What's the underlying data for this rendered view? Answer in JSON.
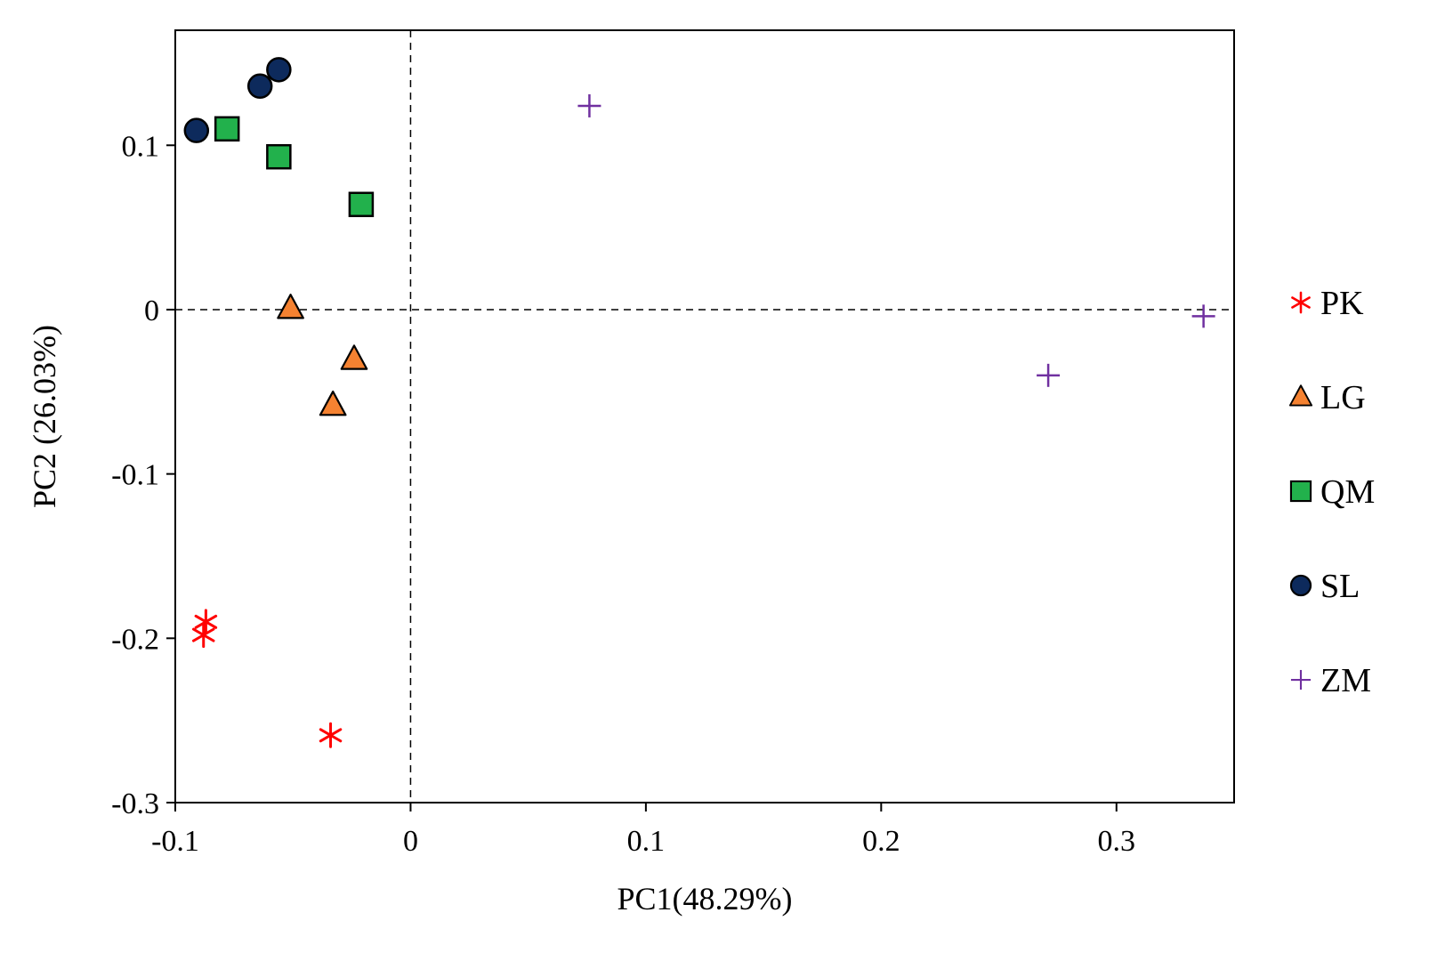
{
  "chart_data": {
    "type": "scatter",
    "title": "",
    "xlabel": "PC1(48.29%)",
    "ylabel": "PC2 (26.03%)",
    "xlim": [
      -0.1,
      0.35
    ],
    "ylim": [
      -0.3,
      0.17
    ],
    "x_ticks": [
      -0.1,
      0,
      0.1,
      0.2,
      0.3
    ],
    "x_tick_labels": [
      "-0.1",
      "0",
      "0.1",
      "0.2",
      "0.3"
    ],
    "y_ticks": [
      -0.3,
      -0.2,
      -0.1,
      0,
      0.1
    ],
    "y_tick_labels": [
      "-0.3",
      "-0.2",
      "-0.1",
      "0",
      "0.1"
    ],
    "reference_lines": {
      "x": 0,
      "y": 0,
      "style": "dashed"
    },
    "grid": false,
    "legend_position": "right",
    "series": [
      {
        "name": "PK",
        "marker": "asterisk",
        "color": "#ff0000",
        "points": [
          [
            -0.087,
            -0.19
          ],
          [
            -0.088,
            -0.198
          ],
          [
            -0.034,
            -0.259
          ]
        ]
      },
      {
        "name": "LG",
        "marker": "triangle",
        "color": "#f58231",
        "points": [
          [
            -0.051,
            0.001
          ],
          [
            -0.024,
            -0.03
          ],
          [
            -0.033,
            -0.058
          ]
        ]
      },
      {
        "name": "QM",
        "marker": "square",
        "color": "#22b14c",
        "points": [
          [
            -0.078,
            0.11
          ],
          [
            -0.056,
            0.093
          ],
          [
            -0.021,
            0.064
          ]
        ]
      },
      {
        "name": "SL",
        "marker": "circle",
        "color": "#0d2a5c",
        "points": [
          [
            -0.091,
            0.109
          ],
          [
            -0.064,
            0.136
          ],
          [
            -0.056,
            0.146
          ]
        ]
      },
      {
        "name": "ZM",
        "marker": "plus",
        "color": "#7030a0",
        "points": [
          [
            0.076,
            0.124
          ],
          [
            0.271,
            -0.04
          ],
          [
            0.337,
            -0.004
          ]
        ]
      }
    ]
  }
}
